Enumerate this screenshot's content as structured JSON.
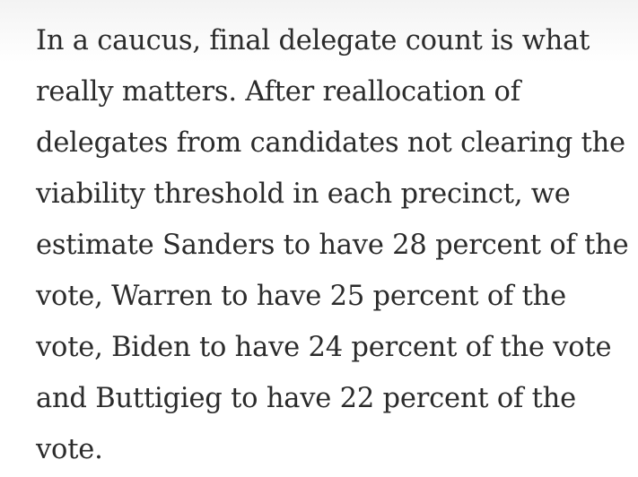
{
  "article": {
    "paragraph_lines": [
      "In a caucus, final delegate count is what",
      "really matters. After reallocation of",
      "delegates from candidates not clearing the",
      "viability threshold in each precinct, we",
      "estimate Sanders to have 28 percent of the",
      "vote, Warren to have 25 percent of the",
      "vote, Biden to have 24 percent of the vote",
      "and Buttigieg to have 22 percent of the",
      "vote."
    ]
  }
}
